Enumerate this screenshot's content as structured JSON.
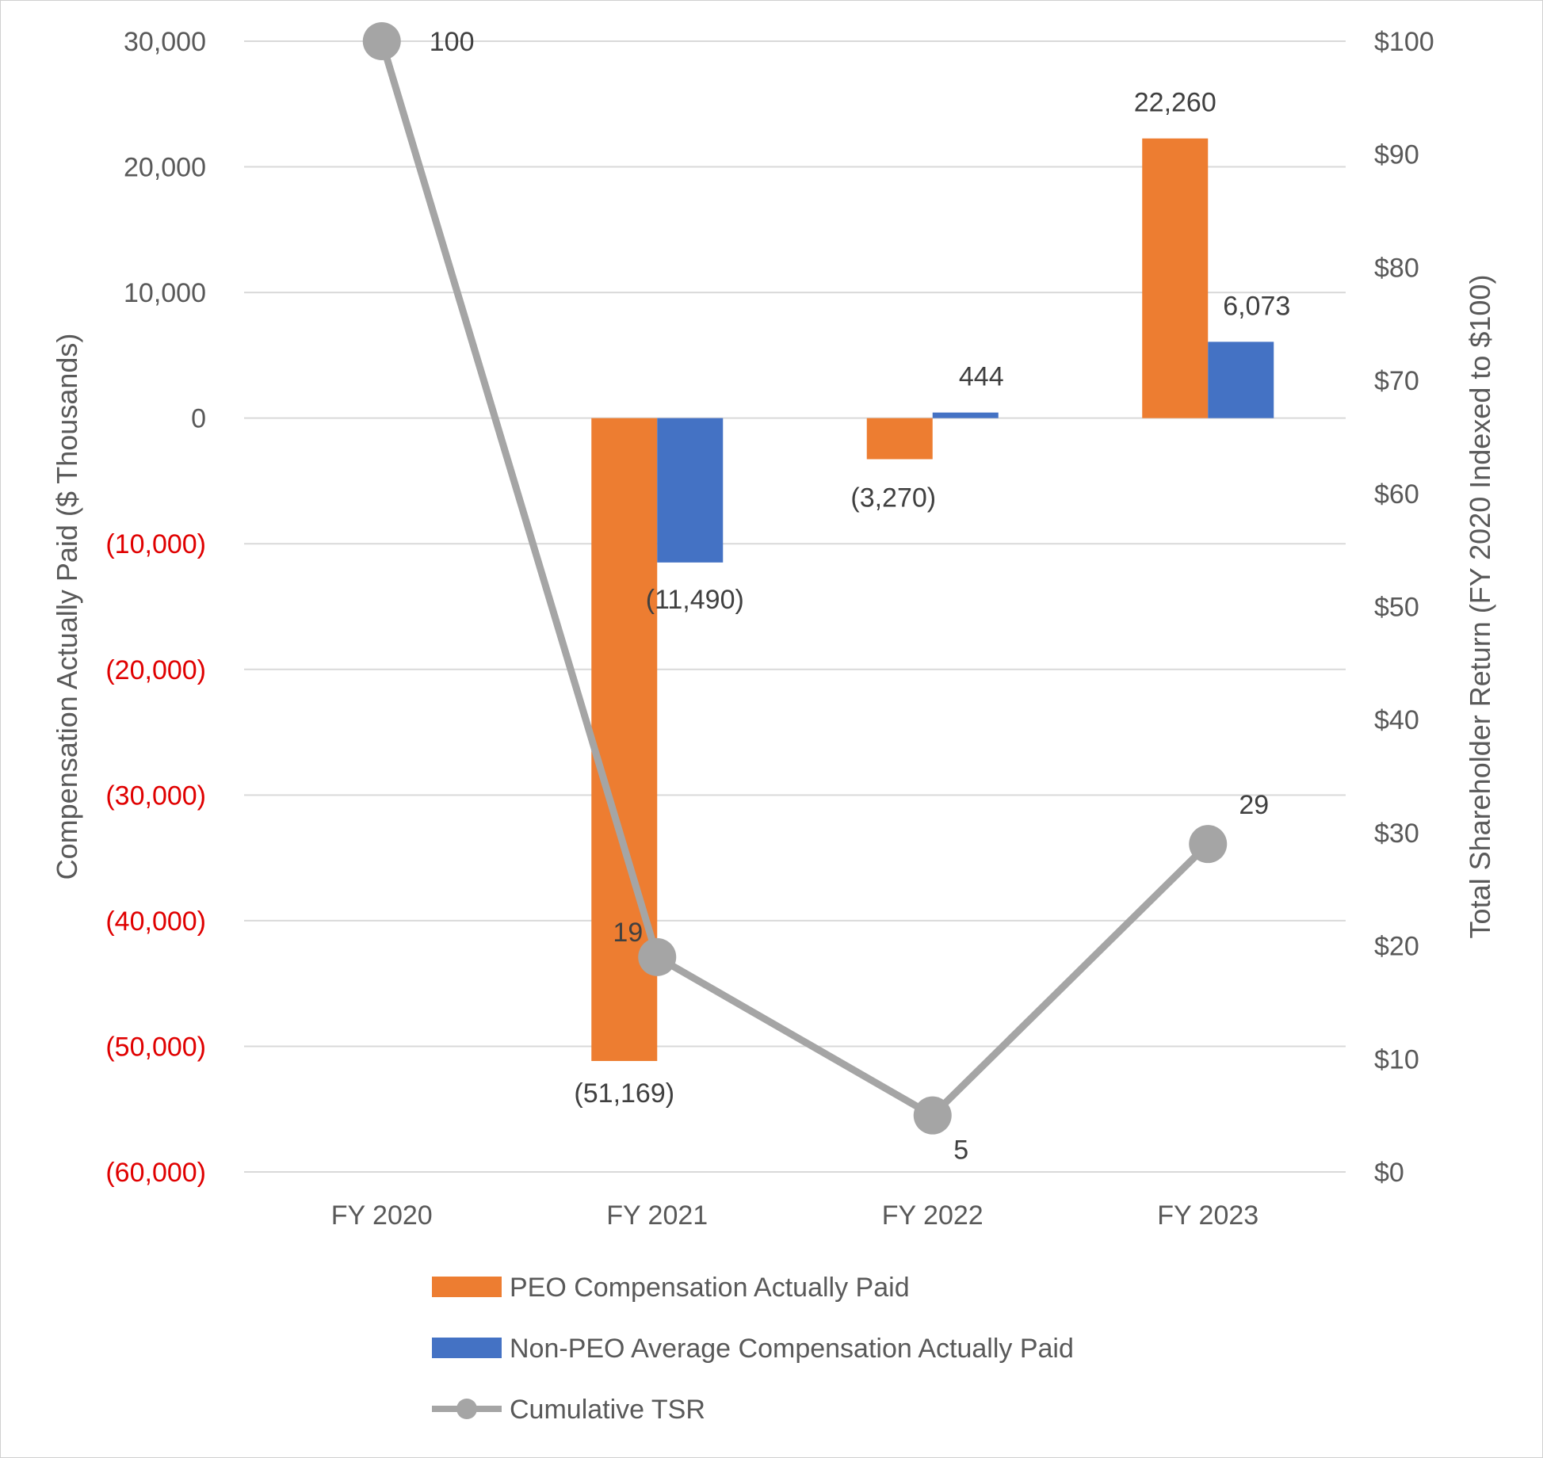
{
  "chart_data": {
    "type": "bar",
    "categories": [
      "FY 2020",
      "FY 2021",
      "FY 2022",
      "FY 2023"
    ],
    "series": [
      {
        "name": "PEO Compensation Actually Paid",
        "type": "bar",
        "axis": "left",
        "color": "#ED7D31",
        "values": [
          null,
          -51169,
          -3270,
          22260
        ],
        "labels": [
          "",
          "(51,169)",
          "(3,270)",
          "22,260"
        ]
      },
      {
        "name": "Non-PEO Average Compensation Actually Paid",
        "type": "bar",
        "axis": "left",
        "color": "#4472C4",
        "values": [
          null,
          -11490,
          444,
          6073
        ],
        "labels": [
          "",
          "(11,490)",
          "444",
          "6,073"
        ]
      },
      {
        "name": "Cumulative TSR",
        "type": "line",
        "axis": "right",
        "color": "#A5A5A5",
        "values": [
          100,
          19,
          5,
          29
        ],
        "labels": [
          "100",
          "19",
          "5",
          "29"
        ]
      }
    ],
    "left_axis": {
      "title": "Compensation Actually Paid ($ Thousands)",
      "ylim": [
        -60000,
        30000
      ],
      "ticks": [
        30000,
        20000,
        10000,
        0,
        -10000,
        -20000,
        -30000,
        -40000,
        -50000,
        -60000
      ],
      "tick_labels": [
        "30,000",
        "20,000",
        "10,000",
        "0",
        "(10,000)",
        "(20,000)",
        "(30,000)",
        "(40,000)",
        "(50,000)",
        "(60,000)"
      ],
      "negative_label_color": "#E00000"
    },
    "right_axis": {
      "title": "Total Shareholder Return (FY 2020 Indexed to $100)",
      "ylim": [
        0,
        100
      ],
      "ticks": [
        100,
        90,
        80,
        70,
        60,
        50,
        40,
        30,
        20,
        10,
        0
      ],
      "tick_labels": [
        "$100",
        "$90",
        "$80",
        "$70",
        "$60",
        "$50",
        "$40",
        "$30",
        "$20",
        "$10",
        "$0"
      ]
    },
    "legend": {
      "position": "bottom",
      "items": [
        "PEO Compensation Actually Paid",
        "Non-PEO Average Compensation Actually Paid",
        "Cumulative TSR"
      ]
    },
    "grid": true,
    "negative_label_color": "#E00000"
  }
}
